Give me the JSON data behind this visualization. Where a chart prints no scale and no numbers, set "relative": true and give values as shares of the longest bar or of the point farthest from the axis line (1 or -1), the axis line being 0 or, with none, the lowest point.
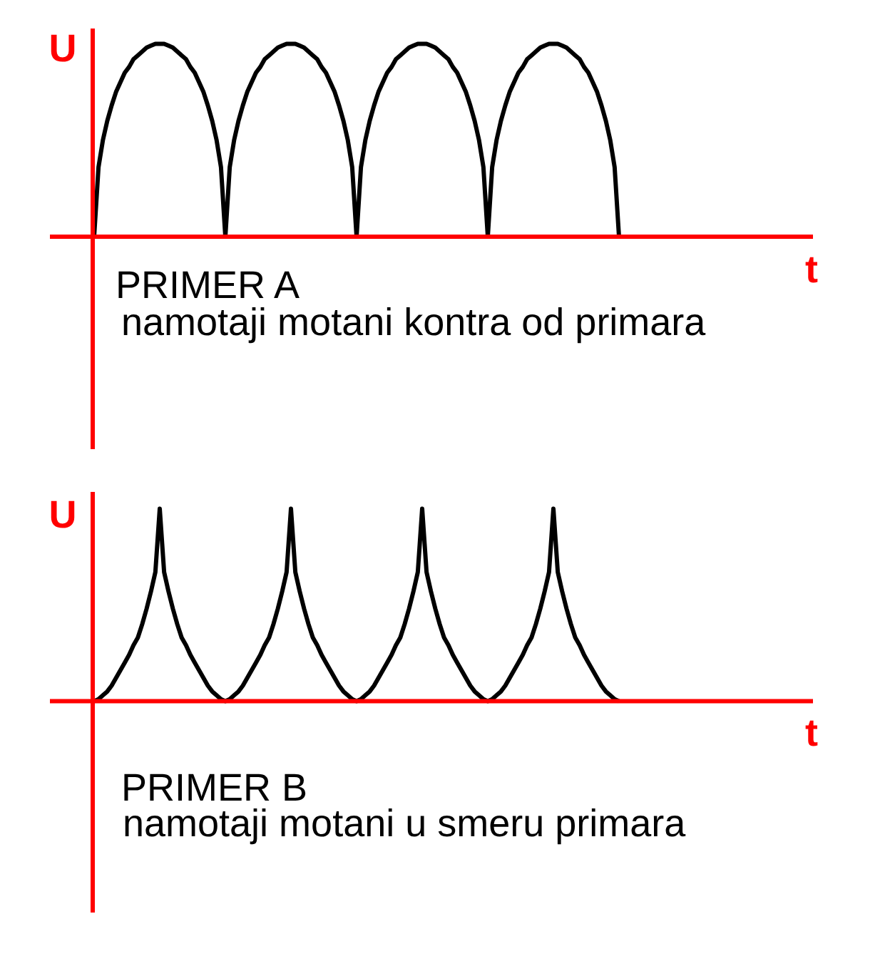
{
  "chart_data": [
    {
      "type": "line",
      "title": "PRIMER A",
      "subtitle": "namotaji motani kontra od primara",
      "xlabel": "t",
      "ylabel": "U",
      "relative": true,
      "categories": [
        null,
        null,
        null,
        null,
        null,
        null,
        null,
        null,
        null,
        null,
        null,
        null,
        null,
        null,
        null,
        null,
        null,
        null,
        null,
        null,
        null,
        null,
        null,
        null,
        null,
        null,
        null,
        null,
        null,
        null,
        null,
        null,
        null,
        null,
        null,
        null,
        null,
        null,
        null,
        null,
        null,
        null,
        null,
        null,
        null,
        null,
        null,
        null,
        null,
        null,
        null,
        null,
        null,
        null,
        null,
        null,
        null,
        null,
        null,
        null,
        null,
        null,
        null,
        null,
        null,
        null,
        null,
        null,
        null,
        null,
        null,
        null,
        null,
        null,
        null,
        null,
        null,
        null,
        null,
        null,
        null,
        null,
        null,
        null,
        null,
        null,
        null,
        null,
        null,
        null,
        null,
        null,
        null,
        null,
        null,
        null,
        null,
        null,
        null,
        null,
        null,
        null,
        null,
        null,
        null,
        null,
        null,
        null,
        null,
        null,
        null,
        null,
        null,
        null,
        null,
        null,
        null,
        null,
        null,
        null,
        null
      ],
      "series": [
        {
          "color": "#000000",
          "values": [
            0,
            0.36,
            0.5,
            0.6,
            0.68,
            0.75,
            0.8,
            0.85,
            0.88,
            0.92,
            0.94,
            0.96,
            0.98,
            0.99,
            1,
            1,
            1,
            0.99,
            0.98,
            0.96,
            0.94,
            0.92,
            0.88,
            0.85,
            0.8,
            0.75,
            0.68,
            0.6,
            0.5,
            0.36,
            0,
            0.36,
            0.5,
            0.6,
            0.68,
            0.75,
            0.8,
            0.85,
            0.88,
            0.92,
            0.94,
            0.96,
            0.98,
            0.99,
            1,
            1,
            1,
            0.99,
            0.98,
            0.96,
            0.94,
            0.92,
            0.88,
            0.85,
            0.8,
            0.75,
            0.68,
            0.6,
            0.5,
            0.36,
            0,
            0.36,
            0.5,
            0.6,
            0.68,
            0.75,
            0.8,
            0.85,
            0.88,
            0.92,
            0.94,
            0.96,
            0.98,
            0.99,
            1,
            1,
            1,
            0.99,
            0.98,
            0.96,
            0.94,
            0.92,
            0.88,
            0.85,
            0.8,
            0.75,
            0.68,
            0.6,
            0.5,
            0.36,
            0,
            0.36,
            0.5,
            0.6,
            0.68,
            0.75,
            0.8,
            0.85,
            0.88,
            0.92,
            0.94,
            0.96,
            0.98,
            0.99,
            1,
            1,
            1,
            0.99,
            0.98,
            0.96,
            0.94,
            0.92,
            0.88,
            0.85,
            0.8,
            0.75,
            0.68,
            0.6,
            0.5,
            0.36,
            0
          ]
        }
      ]
    },
    {
      "type": "line",
      "title": "PRIMER B",
      "subtitle": "namotaji motani u smeru primara",
      "xlabel": "t",
      "ylabel": "U",
      "relative": true,
      "categories": [
        null,
        null,
        null,
        null,
        null,
        null,
        null,
        null,
        null,
        null,
        null,
        null,
        null,
        null,
        null,
        null,
        null,
        null,
        null,
        null,
        null,
        null,
        null,
        null,
        null,
        null,
        null,
        null,
        null,
        null,
        null,
        null,
        null,
        null,
        null,
        null,
        null,
        null,
        null,
        null,
        null,
        null,
        null,
        null,
        null,
        null,
        null,
        null,
        null,
        null,
        null,
        null,
        null,
        null,
        null,
        null,
        null,
        null,
        null,
        null,
        null,
        null,
        null,
        null,
        null,
        null,
        null,
        null,
        null,
        null,
        null,
        null,
        null,
        null,
        null,
        null,
        null,
        null,
        null,
        null,
        null,
        null,
        null,
        null,
        null,
        null,
        null,
        null,
        null,
        null,
        null,
        null,
        null,
        null,
        null,
        null,
        null,
        null,
        null,
        null,
        null,
        null,
        null,
        null,
        null,
        null,
        null,
        null,
        null,
        null,
        null,
        null,
        null,
        null,
        null,
        null,
        null,
        null,
        null,
        null,
        null
      ],
      "series": [
        {
          "color": "#000000",
          "values": [
            0,
            0.01,
            0.03,
            0.05,
            0.08,
            0.12,
            0.16,
            0.2,
            0.24,
            0.29,
            0.33,
            0.4,
            0.48,
            0.57,
            0.67,
            1,
            0.67,
            0.57,
            0.48,
            0.4,
            0.33,
            0.29,
            0.24,
            0.2,
            0.16,
            0.12,
            0.08,
            0.05,
            0.03,
            0.01,
            0,
            0.01,
            0.03,
            0.05,
            0.08,
            0.12,
            0.16,
            0.2,
            0.24,
            0.29,
            0.33,
            0.4,
            0.48,
            0.57,
            0.67,
            1,
            0.67,
            0.57,
            0.48,
            0.4,
            0.33,
            0.29,
            0.24,
            0.2,
            0.16,
            0.12,
            0.08,
            0.05,
            0.03,
            0.01,
            0,
            0.01,
            0.03,
            0.05,
            0.08,
            0.12,
            0.16,
            0.2,
            0.24,
            0.29,
            0.33,
            0.4,
            0.48,
            0.57,
            0.67,
            1,
            0.67,
            0.57,
            0.48,
            0.4,
            0.33,
            0.29,
            0.24,
            0.2,
            0.16,
            0.12,
            0.08,
            0.05,
            0.03,
            0.01,
            0,
            0.01,
            0.03,
            0.05,
            0.08,
            0.12,
            0.16,
            0.2,
            0.24,
            0.29,
            0.33,
            0.4,
            0.48,
            0.57,
            0.67,
            1,
            0.67,
            0.57,
            0.48,
            0.4,
            0.33,
            0.29,
            0.24,
            0.2,
            0.16,
            0.12,
            0.08,
            0.05,
            0.03,
            0.01,
            0
          ]
        }
      ]
    }
  ]
}
